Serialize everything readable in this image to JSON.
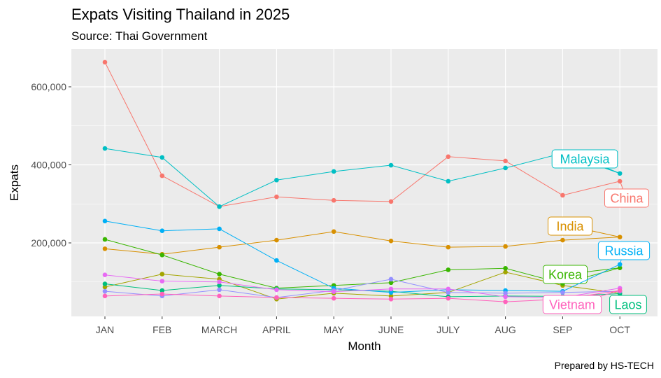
{
  "chart_data": {
    "type": "line",
    "title": "Expats Visiting Thailand in 2025",
    "subtitle": "Source: Thai Government",
    "caption": "Prepared by HS-TECH",
    "xlabel": "Month",
    "ylabel": "Expats",
    "categories": [
      "JAN",
      "FEB",
      "MARCH",
      "APRIL",
      "MAY",
      "JUNE",
      "JULY",
      "AUG",
      "SEP",
      "OCT"
    ],
    "yticks": [
      200000,
      400000,
      600000
    ],
    "ytick_labels": [
      "200,000",
      "400,000",
      "600,000"
    ],
    "ylim": [
      0,
      690000
    ],
    "grid": true,
    "legend": "direct labels at line ends",
    "series": [
      {
        "name": "China",
        "color": "#F8766D",
        "values": [
          663000,
          372000,
          293000,
          318000,
          309000,
          306000,
          421000,
          410000,
          322000,
          358000
        ]
      },
      {
        "name": "India",
        "color": "#D89000",
        "values": [
          185000,
          171000,
          189000,
          207000,
          229000,
          205000,
          189000,
          191000,
          207000,
          215000
        ]
      },
      {
        "name": "",
        "color": "#A3A500",
        "values": [
          87000,
          120000,
          107000,
          56000,
          71000,
          64000,
          73000,
          125000,
          91000,
          71000
        ]
      },
      {
        "name": "Korea",
        "color": "#39B600",
        "values": [
          209000,
          169000,
          120000,
          84000,
          91000,
          98000,
          131000,
          135000,
          96000,
          136000
        ]
      },
      {
        "name": "Laos",
        "color": "#00BF7D",
        "values": [
          95000,
          78000,
          91000,
          82000,
          80000,
          76000,
          62000,
          64000,
          63000,
          70000
        ]
      },
      {
        "name": "Malaysia",
        "color": "#00BFC4",
        "values": [
          442000,
          419000,
          293000,
          361000,
          383000,
          399000,
          358000,
          392000,
          430000,
          378000
        ]
      },
      {
        "name": "Russia",
        "color": "#00B0F6",
        "values": [
          256000,
          231000,
          236000,
          155000,
          84000,
          73000,
          80000,
          78000,
          76000,
          145000
        ]
      },
      {
        "name": "",
        "color": "#9590FF",
        "values": [
          76000,
          64000,
          80000,
          60000,
          78000,
          107000,
          73000,
          71000,
          73000,
          76000
        ]
      },
      {
        "name": "",
        "color": "#E76BF3",
        "values": [
          118000,
          102000,
          100000,
          80000,
          75000,
          82000,
          82000,
          62000,
          60000,
          84000
        ]
      },
      {
        "name": "Vietnam",
        "color": "#FF62BC",
        "values": [
          64000,
          69000,
          64000,
          60000,
          58000,
          56000,
          58000,
          49000,
          56000,
          78000
        ]
      }
    ]
  }
}
